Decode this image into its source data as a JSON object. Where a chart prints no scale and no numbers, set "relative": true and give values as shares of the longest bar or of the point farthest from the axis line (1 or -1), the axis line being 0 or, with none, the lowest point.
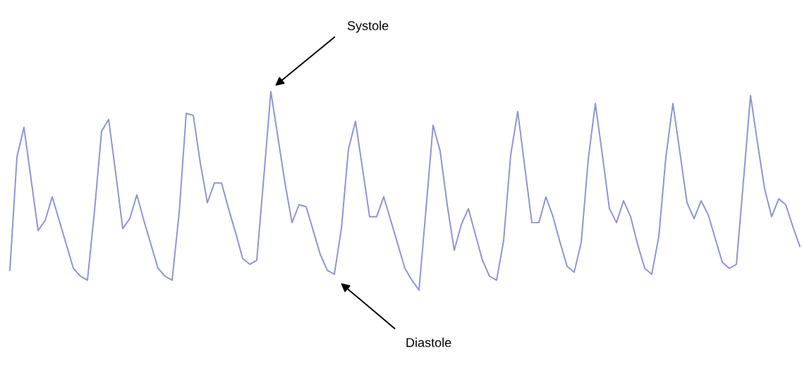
{
  "chart_data": {
    "type": "line",
    "relative": true,
    "categories": [
      null,
      null,
      null,
      null,
      null,
      null,
      null,
      null,
      null,
      null,
      null,
      null,
      null,
      null,
      null,
      null,
      null,
      null,
      null,
      null,
      null,
      null,
      null,
      null,
      null,
      null,
      null,
      null,
      null,
      null,
      null,
      null,
      null,
      null,
      null,
      null,
      null,
      null,
      null,
      null,
      null,
      null,
      null,
      null,
      null,
      null,
      null,
      null,
      null,
      null,
      null,
      null,
      null,
      null,
      null,
      null,
      null,
      null,
      null,
      null,
      null,
      null,
      null,
      null,
      null,
      null,
      null,
      null,
      null,
      null,
      null,
      null,
      null,
      null,
      null,
      null,
      null,
      null,
      null,
      null,
      null,
      null,
      null,
      null,
      null,
      null,
      null,
      null,
      null,
      null,
      null,
      null,
      null,
      null,
      null,
      null,
      null,
      null,
      null,
      null,
      null,
      null,
      null,
      null,
      null,
      null,
      null,
      null,
      null,
      null,
      null,
      null,
      null
    ],
    "series": [
      {
        "color": "#8a94d6",
        "values": [
          0.1,
          0.67,
          0.82,
          0.56,
          0.3,
          0.35,
          0.47,
          0.35,
          0.23,
          0.11,
          0.07,
          0.05,
          0.4,
          0.8,
          0.86,
          0.59,
          0.31,
          0.36,
          0.48,
          0.35,
          0.23,
          0.11,
          0.07,
          0.05,
          0.39,
          0.89,
          0.88,
          0.64,
          0.44,
          0.54,
          0.54,
          0.41,
          0.29,
          0.16,
          0.13,
          0.15,
          0.57,
          1.0,
          0.77,
          0.54,
          0.34,
          0.43,
          0.42,
          0.3,
          0.18,
          0.1,
          0.08,
          0.31,
          0.71,
          0.85,
          0.61,
          0.37,
          0.37,
          0.47,
          0.35,
          0.23,
          0.11,
          0.05,
          0,
          0.41,
          0.83,
          0.7,
          0.43,
          0.2,
          0.33,
          0.41,
          0.28,
          0.15,
          0.07,
          0.05,
          0.25,
          0.68,
          0.9,
          0.62,
          0.34,
          0.34,
          0.47,
          0.37,
          0.24,
          0.12,
          0.09,
          0.24,
          0.66,
          0.94,
          0.68,
          0.41,
          0.34,
          0.45,
          0.37,
          0.23,
          0.11,
          0.08,
          0.27,
          0.67,
          0.94,
          0.69,
          0.44,
          0.36,
          0.45,
          0.38,
          0.26,
          0.14,
          0.11,
          0.13,
          0.55,
          0.98,
          0.74,
          0.51,
          0.37,
          0.46,
          0.43,
          0.32,
          0.22
        ]
      }
    ],
    "annotations": [
      "Systole",
      "Diastole"
    ]
  }
}
